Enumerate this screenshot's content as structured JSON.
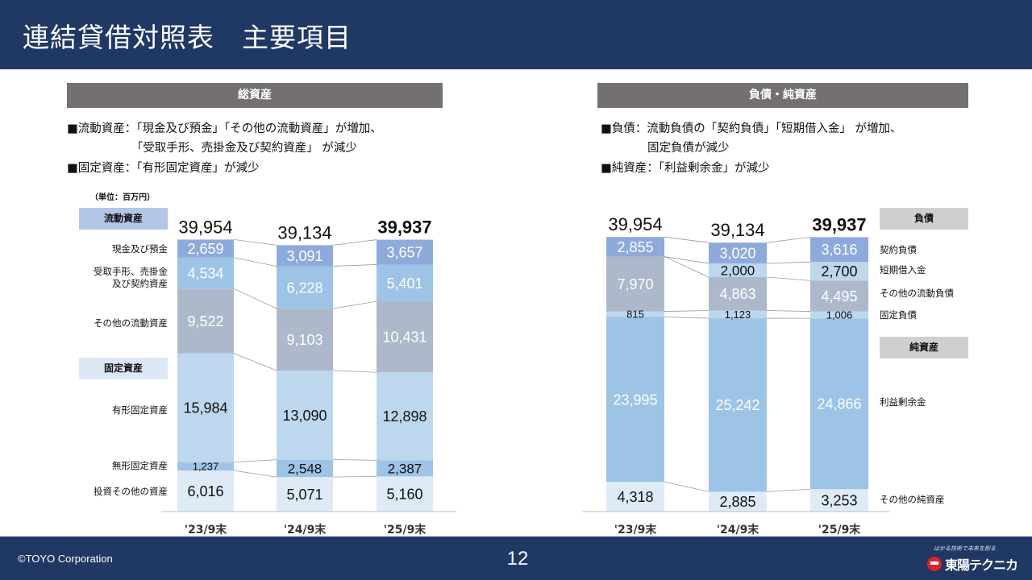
{
  "header": {
    "title": "連結貸借対照表　主要項目"
  },
  "footer": {
    "copyright": "©TOYO Corporation",
    "page_number": "12",
    "logo_tagline": "はかる技術で未来を創る",
    "logo_name": "東陽テクニカ"
  },
  "left": {
    "section_title": "総資産",
    "notes": [
      "■流動資産：「現金及び預金」「その他の流動資産」が増加、",
      "　　　　　　「受取手形、売掛金及び契約資産」 が減少",
      "■固定資産：「有形固定資産」が減少"
    ],
    "unit_label": "（単位：百万円）",
    "category_current": "流動資産",
    "category_fixed": "固定資産",
    "row_labels": [
      "現金及び預金",
      "受取手形、売掛金",
      "及び契約資産",
      "その他の流動資産",
      "有形固定資産",
      "無形固定資産",
      "投資その他の資産"
    ]
  },
  "right": {
    "section_title": "負債・純資産",
    "notes": [
      "■負債：流動負債の「契約負債」「短期借入金」 が増加、",
      "　　　　固定負債が減少",
      "■純資産：「利益剰余金」が減少"
    ],
    "category_liabilities": "負債",
    "category_net_assets": "純資産",
    "row_labels": [
      "契約負債",
      "短期借入金",
      "その他の流動負債",
      "固定負債",
      "利益剰余金",
      "その他の純資産"
    ]
  },
  "chart_data": [
    {
      "type": "bar",
      "stacked": true,
      "title": "総資産",
      "categories": [
        "'23/9末",
        "'24/9末",
        "'25/9末"
      ],
      "totals": [
        "39,954",
        "39,134",
        "39,937"
      ],
      "series": [
        {
          "name": "現金及び預金",
          "values": [
            2659,
            3091,
            3657
          ],
          "color": "#8eaadb"
        },
        {
          "name": "受取手形、売掛金及び契約資産",
          "values": [
            4534,
            6228,
            5401
          ],
          "color": "#9dc3e6"
        },
        {
          "name": "その他の流動資産",
          "values": [
            9522,
            9103,
            10431
          ],
          "color": "#adb9ca"
        },
        {
          "name": "有形固定資産",
          "values": [
            15984,
            13090,
            12898
          ],
          "color": "#bdd7ee"
        },
        {
          "name": "無形固定資産",
          "values": [
            1237,
            2548,
            2387
          ],
          "color": "#9dc3e6"
        },
        {
          "name": "投資その他の資産",
          "values": [
            6016,
            5071,
            5160
          ],
          "color": "#deebf7"
        }
      ]
    },
    {
      "type": "bar",
      "stacked": true,
      "title": "負債・純資産",
      "categories": [
        "'23/9末",
        "'24/9末",
        "'25/9末"
      ],
      "totals": [
        "39,954",
        "39,134",
        "39,937"
      ],
      "series": [
        {
          "name": "契約負債",
          "values": [
            2855,
            3020,
            3616
          ],
          "color": "#8eaadb"
        },
        {
          "name": "短期借入金",
          "values": [
            0,
            2000,
            2700
          ],
          "color": "#bdd7ee"
        },
        {
          "name": "その他の流動負債",
          "values": [
            7970,
            4863,
            4495
          ],
          "color": "#adb9ca"
        },
        {
          "name": "固定負債",
          "values": [
            815,
            1123,
            1006
          ],
          "color": "#bdd7ee"
        },
        {
          "name": "利益剰余金",
          "values": [
            23995,
            25242,
            24866
          ],
          "color": "#9dc3e6"
        },
        {
          "name": "その他の純資産",
          "values": [
            4318,
            2885,
            3253
          ],
          "color": "#deebf7"
        }
      ]
    }
  ]
}
